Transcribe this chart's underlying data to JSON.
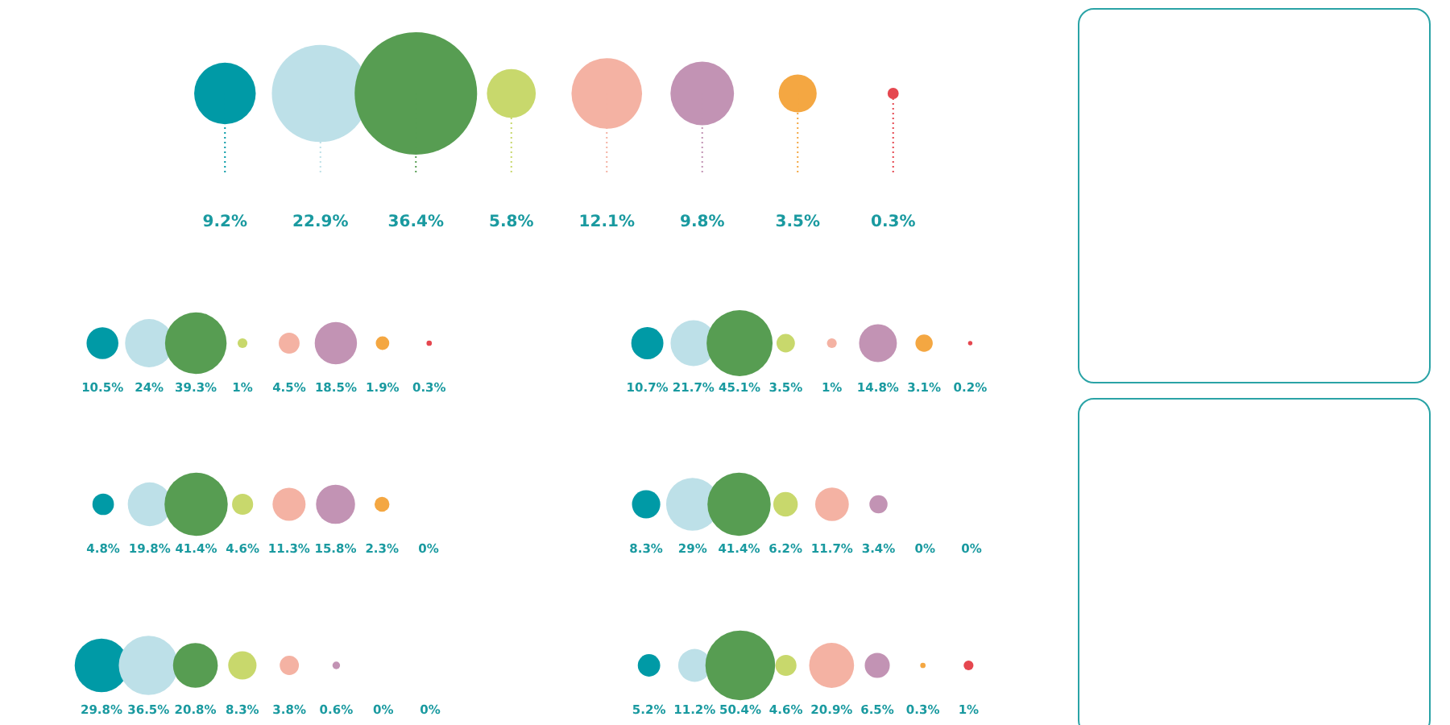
{
  "chart_data": [
    {
      "type": "other",
      "categories": [
        null,
        null,
        null,
        null,
        null,
        null,
        null,
        null
      ],
      "values": [
        9.2,
        22.9,
        36.4,
        5.8,
        12.1,
        9.8,
        3.5,
        0.3
      ],
      "value_labels": [
        "9.2%",
        "22.9%",
        "36.4%",
        "5.8%",
        "12.1%",
        "9.8%",
        "3.5%",
        "0.3%"
      ],
      "colors": [
        "#009aa6",
        "#bde0e8",
        "#579d52",
        "#c8d86c",
        "#f4b2a3",
        "#c293b4",
        "#f4a742",
        "#e5474f"
      ]
    },
    {
      "type": "other",
      "categories": [
        null,
        null,
        null,
        null,
        null,
        null,
        null,
        null
      ],
      "values": [
        10.5,
        24,
        39.3,
        1,
        4.5,
        18.5,
        1.9,
        0.3
      ],
      "value_labels": [
        "10.5%",
        "24%",
        "39.3%",
        "1%",
        "4.5%",
        "18.5%",
        "1.9%",
        "0.3%"
      ],
      "colors": [
        "#009aa6",
        "#bde0e8",
        "#579d52",
        "#c8d86c",
        "#f4b2a3",
        "#c293b4",
        "#f4a742",
        "#e5474f"
      ]
    },
    {
      "type": "other",
      "categories": [
        null,
        null,
        null,
        null,
        null,
        null,
        null,
        null
      ],
      "values": [
        10.7,
        21.7,
        45.1,
        3.5,
        1,
        14.8,
        3.1,
        0.2
      ],
      "value_labels": [
        "10.7%",
        "21.7%",
        "45.1%",
        "3.5%",
        "1%",
        "14.8%",
        "3.1%",
        "0.2%"
      ],
      "colors": [
        "#009aa6",
        "#bde0e8",
        "#579d52",
        "#c8d86c",
        "#f4b2a3",
        "#c293b4",
        "#f4a742",
        "#e5474f"
      ]
    },
    {
      "type": "other",
      "categories": [
        null,
        null,
        null,
        null,
        null,
        null,
        null,
        null
      ],
      "values": [
        4.8,
        19.8,
        41.4,
        4.6,
        11.3,
        15.8,
        2.3,
        0
      ],
      "value_labels": [
        "4.8%",
        "19.8%",
        "41.4%",
        "4.6%",
        "11.3%",
        "15.8%",
        "2.3%",
        "0%"
      ],
      "colors": [
        "#009aa6",
        "#bde0e8",
        "#579d52",
        "#c8d86c",
        "#f4b2a3",
        "#c293b4",
        "#f4a742",
        "#e5474f"
      ]
    },
    {
      "type": "other",
      "categories": [
        null,
        null,
        null,
        null,
        null,
        null,
        null,
        null
      ],
      "values": [
        8.3,
        29,
        41.4,
        6.2,
        11.7,
        3.4,
        0,
        0
      ],
      "value_labels": [
        "8.3%",
        "29%",
        "41.4%",
        "6.2%",
        "11.7%",
        "3.4%",
        "0%",
        "0%"
      ],
      "colors": [
        "#009aa6",
        "#bde0e8",
        "#579d52",
        "#c8d86c",
        "#f4b2a3",
        "#c293b4",
        "#f4a742",
        "#e5474f"
      ]
    },
    {
      "type": "other",
      "categories": [
        null,
        null,
        null,
        null,
        null,
        null,
        null,
        null
      ],
      "values": [
        29.8,
        36.5,
        20.8,
        8.3,
        3.8,
        0.6,
        0,
        0
      ],
      "value_labels": [
        "29.8%",
        "36.5%",
        "20.8%",
        "8.3%",
        "3.8%",
        "0.6%",
        "0%",
        "0%"
      ],
      "colors": [
        "#009aa6",
        "#bde0e8",
        "#579d52",
        "#c8d86c",
        "#f4b2a3",
        "#c293b4",
        "#f4a742",
        "#e5474f"
      ]
    },
    {
      "type": "other",
      "categories": [
        null,
        null,
        null,
        null,
        null,
        null,
        null,
        null
      ],
      "values": [
        5.2,
        11.2,
        50.4,
        4.6,
        20.9,
        6.5,
        0.3,
        1
      ],
      "value_labels": [
        "5.2%",
        "11.2%",
        "50.4%",
        "4.6%",
        "20.9%",
        "6.5%",
        "0.3%",
        "1%"
      ],
      "colors": [
        "#009aa6",
        "#bde0e8",
        "#579d52",
        "#c8d86c",
        "#f4b2a3",
        "#c293b4",
        "#f4a742",
        "#e5474f"
      ]
    }
  ]
}
